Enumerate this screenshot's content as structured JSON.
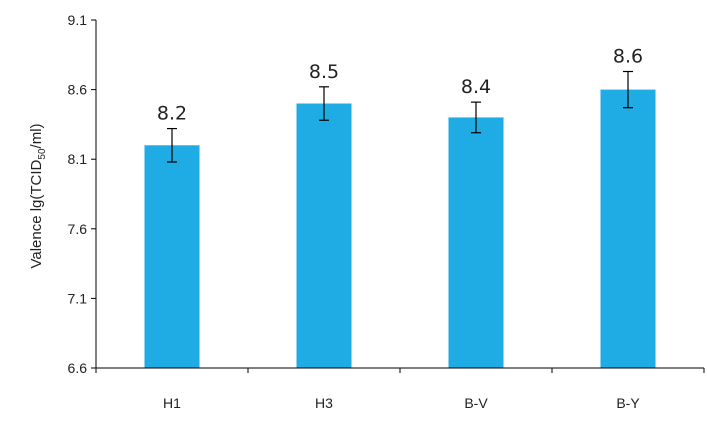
{
  "chart_data": {
    "type": "bar",
    "categories": [
      "H1",
      "H3",
      "B-V",
      "B-Y"
    ],
    "values": [
      8.2,
      8.5,
      8.4,
      8.6
    ],
    "error": [
      0.12,
      0.12,
      0.11,
      0.13
    ],
    "data_labels": [
      "8.2",
      "8.5",
      "8.4",
      "8.6"
    ],
    "yticks": [
      "6.6",
      "7.1",
      "7.6",
      "8.1",
      "8.6",
      "9.1"
    ],
    "ylim": [
      6.6,
      9.1
    ],
    "ylabel_main": "Valence lg(TCID",
    "ylabel_sub": "50",
    "ylabel_end": "/ml)",
    "xlabel": "",
    "bar_color": "#1fabe3",
    "grid": false
  }
}
